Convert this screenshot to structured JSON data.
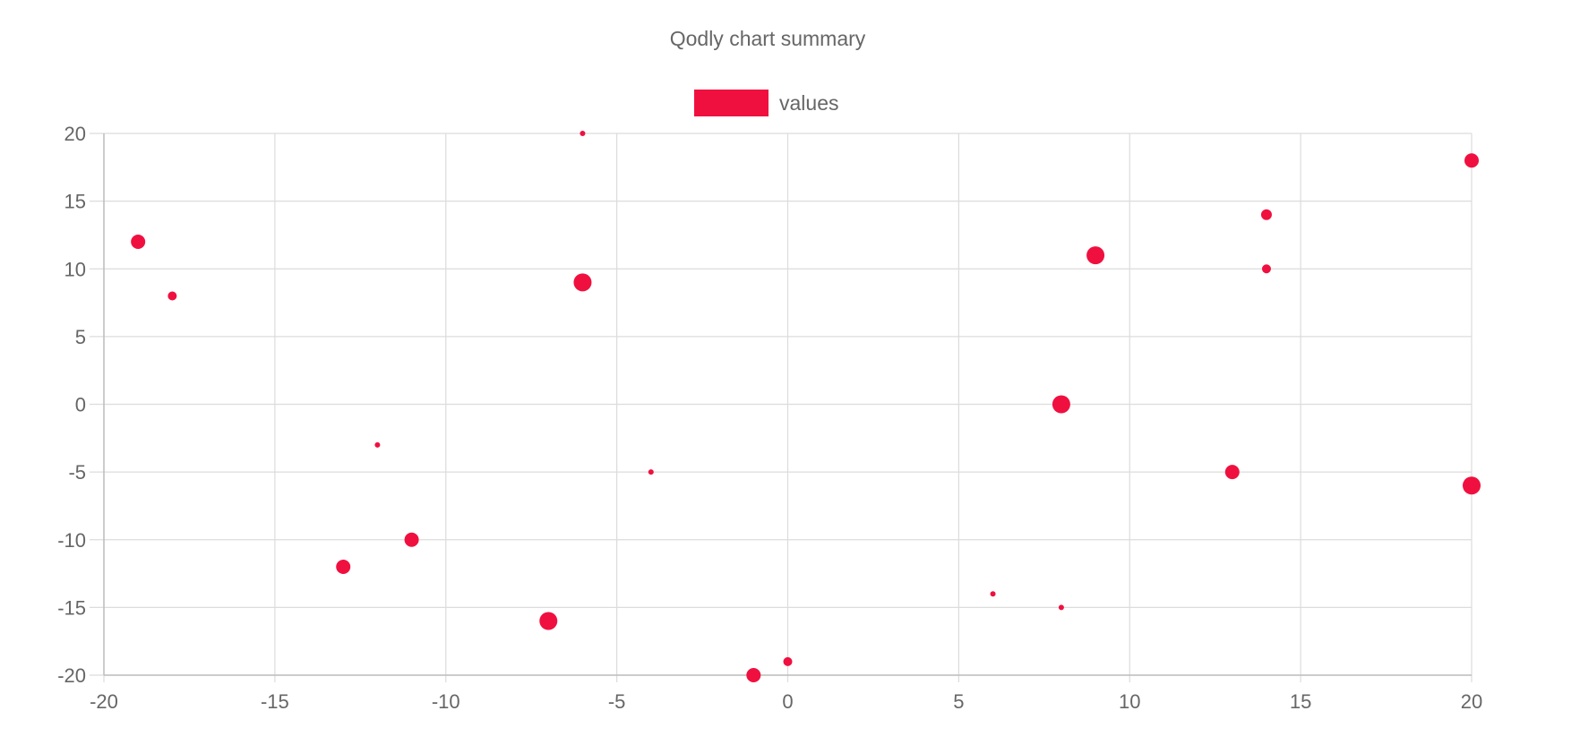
{
  "chart_data": {
    "type": "scatter",
    "title": "Qodly chart summary",
    "legend": {
      "position": "top",
      "entries": [
        "values"
      ]
    },
    "series": [
      {
        "name": "values",
        "color": "#f0103f",
        "points": [
          {
            "x": -19,
            "y": 12,
            "r": 8
          },
          {
            "x": -18,
            "y": 8,
            "r": 5
          },
          {
            "x": -13,
            "y": -12,
            "r": 8
          },
          {
            "x": -12,
            "y": -3,
            "r": 3
          },
          {
            "x": -11,
            "y": -10,
            "r": 8
          },
          {
            "x": -7,
            "y": -16,
            "r": 10
          },
          {
            "x": -6,
            "y": 20,
            "r": 3
          },
          {
            "x": -6,
            "y": 9,
            "r": 10
          },
          {
            "x": -4,
            "y": -5,
            "r": 3
          },
          {
            "x": -1,
            "y": -20,
            "r": 8
          },
          {
            "x": 0,
            "y": -19,
            "r": 5
          },
          {
            "x": 6,
            "y": -14,
            "r": 3
          },
          {
            "x": 8,
            "y": -15,
            "r": 3
          },
          {
            "x": 8,
            "y": 0,
            "r": 10
          },
          {
            "x": 9,
            "y": 11,
            "r": 10
          },
          {
            "x": 13,
            "y": -5,
            "r": 8
          },
          {
            "x": 14,
            "y": 14,
            "r": 6
          },
          {
            "x": 14,
            "y": 10,
            "r": 5
          },
          {
            "x": 20,
            "y": 18,
            "r": 8
          },
          {
            "x": 20,
            "y": -6,
            "r": 10
          }
        ]
      }
    ],
    "xlim": [
      -20,
      20
    ],
    "ylim": [
      -20,
      20
    ],
    "xticks": [
      "-20",
      "-15",
      "-10",
      "-5",
      "0",
      "5",
      "10",
      "15",
      "20"
    ],
    "yticks": [
      "20",
      "15",
      "10",
      "5",
      "0",
      "-5",
      "-10",
      "-15",
      "-20"
    ],
    "grid": true
  }
}
